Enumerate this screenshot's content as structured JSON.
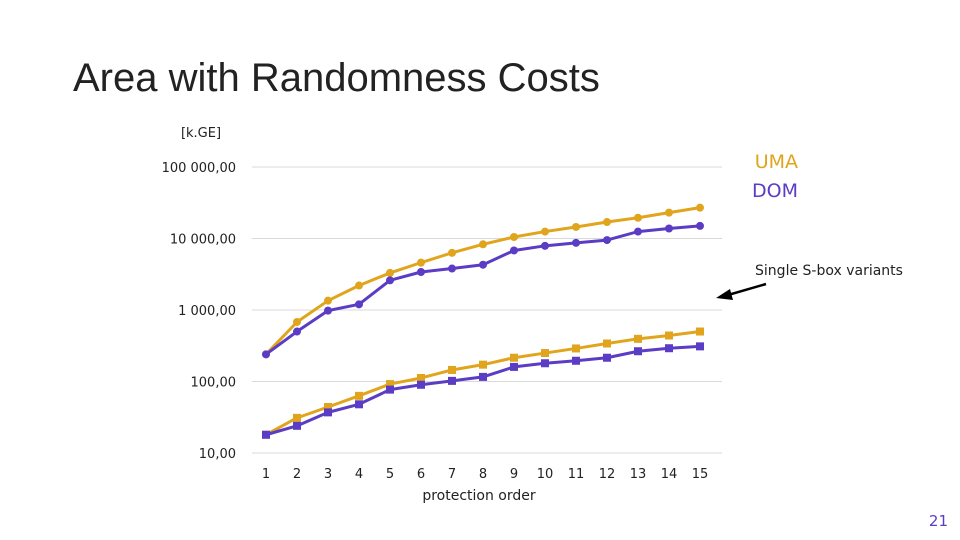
{
  "slide": {
    "title": "Area with Randomness Costs",
    "number": "21"
  },
  "colors": {
    "UMA": "#e0a51c",
    "DOM": "#5b3cc4",
    "grid": "#d9d9d9",
    "text": "#222222",
    "arrow": "#000000"
  },
  "chart_data": {
    "type": "line",
    "ylabel": "[k.GE]",
    "xlabel": "protection order",
    "y_scale": "log",
    "ylim": [
      10,
      100000
    ],
    "y_ticks": [
      10,
      100,
      1000,
      10000,
      100000
    ],
    "y_tick_labels": [
      "10,00",
      "100,00",
      "1 000,00",
      "10 000,00",
      "100 000,00"
    ],
    "x": [
      1,
      2,
      3,
      4,
      5,
      6,
      7,
      8,
      9,
      10,
      11,
      12,
      13,
      14,
      15
    ],
    "x_tick_labels": [
      "1",
      "2",
      "3",
      "4",
      "5",
      "6",
      "7",
      "8",
      "9",
      "10",
      "11",
      "12",
      "13",
      "14",
      "15"
    ],
    "grid": true,
    "legend": {
      "position": "top-right",
      "entries": [
        "UMA",
        "DOM"
      ]
    },
    "annotations": [
      {
        "text": "Single S-box variants"
      }
    ],
    "series": [
      {
        "name": "UMA",
        "group": "upper",
        "marker": "circle",
        "values": [
          240,
          680,
          1350,
          2200,
          3300,
          4600,
          6300,
          8300,
          10500,
          12500,
          14500,
          17000,
          19500,
          23000,
          27000
        ]
      },
      {
        "name": "DOM",
        "group": "upper",
        "marker": "circle",
        "values": [
          240,
          500,
          980,
          1200,
          2600,
          3400,
          3800,
          4300,
          6800,
          7900,
          8700,
          9500,
          12500,
          13800,
          15000
        ]
      },
      {
        "name": "UMA",
        "group": "lower",
        "marker": "square",
        "values": [
          18,
          31,
          44,
          63,
          92,
          112,
          145,
          172,
          215,
          250,
          290,
          340,
          395,
          440,
          500
        ]
      },
      {
        "name": "DOM",
        "group": "lower",
        "marker": "square",
        "values": [
          18,
          24,
          37,
          48,
          77,
          90,
          102,
          116,
          160,
          180,
          195,
          215,
          265,
          292,
          310
        ]
      }
    ]
  }
}
